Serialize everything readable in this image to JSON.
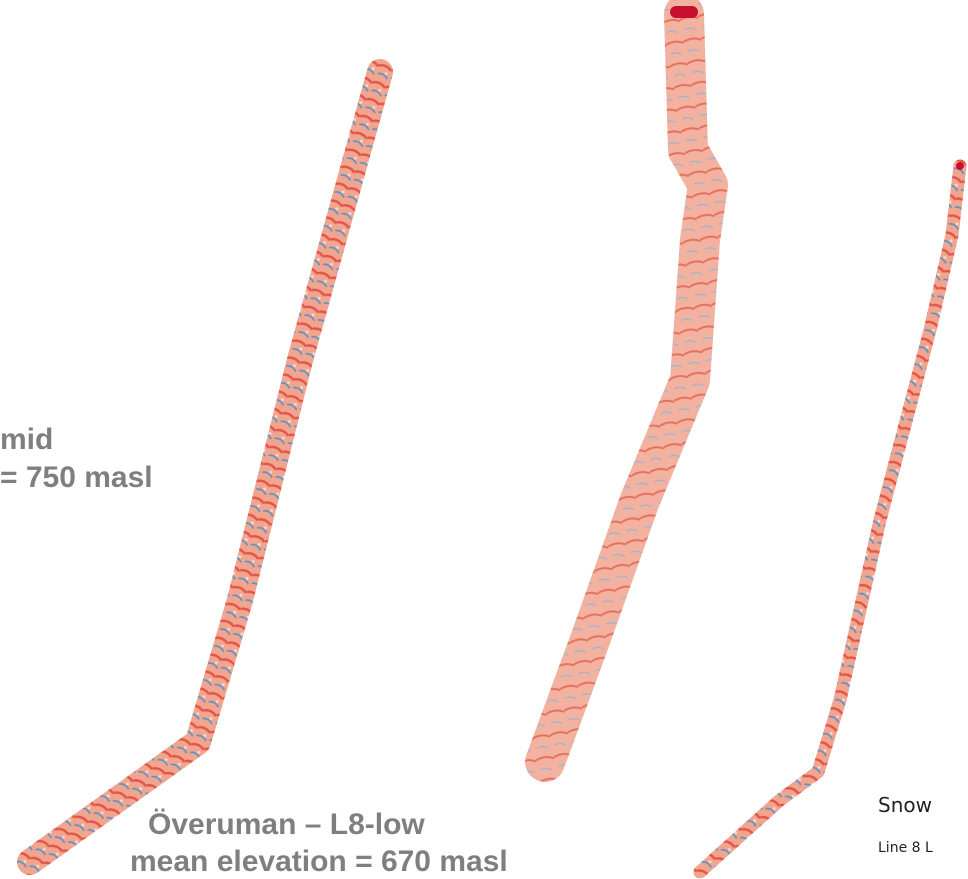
{
  "labels": {
    "mid_site": {
      "line1": "mid",
      "line2": "= 750 masl"
    },
    "low_site": {
      "line1": "Överuman – L8-low",
      "line2": "mean elevation = 670 masl"
    }
  },
  "legend": {
    "title": "Snow",
    "line": "Line 8 L"
  }
}
